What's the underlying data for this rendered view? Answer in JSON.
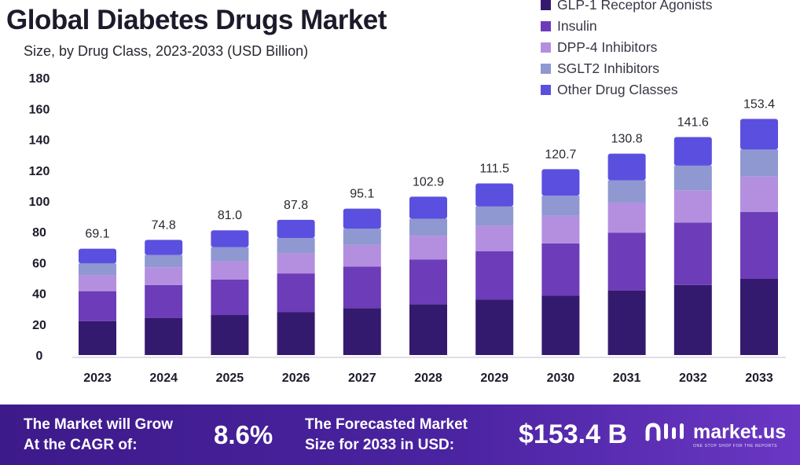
{
  "title": "Global Diabetes Drugs Market",
  "subtitle": "Size, by Drug Class, 2023-2033 (USD Billion)",
  "colors": {
    "glp1": "#341a6e",
    "insulin": "#6d3cb8",
    "dpp4": "#b48fe0",
    "sglt2": "#8f98d0",
    "other": "#5b4fe0",
    "footer_bg": "#4a23a0"
  },
  "chart_data": {
    "type": "bar",
    "stacked": true,
    "categories": [
      "2023",
      "2024",
      "2025",
      "2026",
      "2027",
      "2028",
      "2029",
      "2030",
      "2031",
      "2032",
      "2033"
    ],
    "totals": [
      69.1,
      74.8,
      81.0,
      87.8,
      95.1,
      102.9,
      111.5,
      120.7,
      130.8,
      141.6,
      153.4
    ],
    "total_labels": [
      "69.1",
      "74.8",
      "81.0",
      "87.8",
      "95.1",
      "102.9",
      "111.5",
      "120.7",
      "130.8",
      "141.6",
      "153.4"
    ],
    "series": [
      {
        "name": "GLP-1 Receptor Agonists",
        "color_key": "glp1",
        "values": [
          22,
          24,
          26,
          28,
          30.5,
          33,
          36,
          38.5,
          42,
          45.5,
          49.5
        ]
      },
      {
        "name": "Insulin",
        "color_key": "insulin",
        "values": [
          19.5,
          21.5,
          23,
          25,
          27,
          29,
          31.5,
          34,
          37.5,
          40.5,
          43.5
        ]
      },
      {
        "name": "DPP-4 Inhibitors",
        "color_key": "dpp4",
        "values": [
          10.5,
          11.5,
          12,
          13,
          14,
          15.5,
          16.5,
          18,
          19.5,
          21,
          23
        ]
      },
      {
        "name": "SGLT2 Inhibitors",
        "color_key": "sglt2",
        "values": [
          7.5,
          8,
          9,
          10,
          10.5,
          11,
          12.5,
          13,
          14.5,
          16,
          17.5
        ]
      },
      {
        "name": "Other Drug Classes",
        "color_key": "other",
        "values": [
          9.6,
          9.8,
          11.0,
          11.8,
          13.1,
          14.4,
          15.0,
          17.2,
          17.3,
          18.6,
          19.9
        ]
      }
    ],
    "y_ticks": [
      "0",
      "20",
      "40",
      "60",
      "80",
      "100",
      "120",
      "140",
      "160",
      "180"
    ],
    "ylim": [
      0,
      180
    ],
    "grid": false,
    "legend_position": "top-right"
  },
  "footer": {
    "cagr_label": "The Market will Grow\nAt the CAGR of:",
    "cagr_value": "8.6%",
    "forecast_label": "The Forecasted Market\nSize for 2033 in USD:",
    "forecast_value": "$153.4 B",
    "brand_name": "market.us",
    "brand_tagline": "ONE STOP SHOP FOR THE REPORTS",
    "logo_icon": "market-us-logo-icon"
  }
}
